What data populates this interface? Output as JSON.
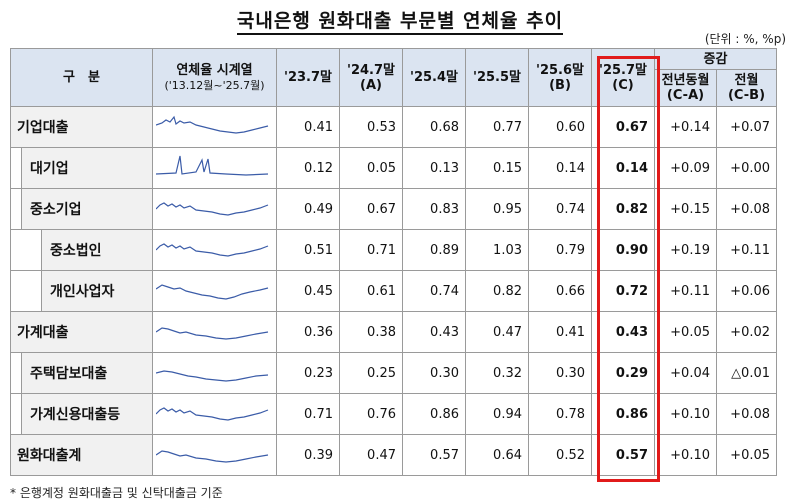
{
  "title": "국내은행 원화대출 부문별 연체율 추이",
  "unit": "(단위 : %, %p)",
  "headers": {
    "category": "구　분",
    "spark_title": "연체율 시계열",
    "spark_sub": "('13.12월~'25.7월)",
    "c1": "'23.7말",
    "c2": "'24.7말",
    "c2_sub": "(A)",
    "c3": "'25.4말",
    "c4": "'25.5말",
    "c5": "'25.6말",
    "c5_sub": "(B)",
    "c6": "'25.7말",
    "c6_sub": "(C)",
    "change": "증감",
    "yoy": "전년동월",
    "yoy_sub": "(C-A)",
    "mom": "전월",
    "mom_sub": "(C-B)"
  },
  "rows": [
    {
      "label": "기업대출",
      "level": 0,
      "v": [
        "0.41",
        "0.53",
        "0.68",
        "0.77",
        "0.60",
        "0.67"
      ],
      "yoy": "+0.14",
      "mom": "+0.07",
      "spark": "a"
    },
    {
      "label": "대기업",
      "level": 1,
      "v": [
        "0.12",
        "0.05",
        "0.13",
        "0.15",
        "0.14",
        "0.14"
      ],
      "yoy": "+0.09",
      "mom": "+0.00",
      "spark": "b"
    },
    {
      "label": "중소기업",
      "level": 1,
      "v": [
        "0.49",
        "0.67",
        "0.83",
        "0.95",
        "0.74",
        "0.82"
      ],
      "yoy": "+0.15",
      "mom": "+0.08",
      "spark": "c"
    },
    {
      "label": "중소법인",
      "level": 2,
      "v": [
        "0.51",
        "0.71",
        "0.89",
        "1.03",
        "0.79",
        "0.90"
      ],
      "yoy": "+0.19",
      "mom": "+0.11",
      "spark": "c"
    },
    {
      "label": "개인사업자",
      "level": 2,
      "v": [
        "0.45",
        "0.61",
        "0.74",
        "0.82",
        "0.66",
        "0.72"
      ],
      "yoy": "+0.11",
      "mom": "+0.06",
      "spark": "d"
    },
    {
      "label": "가계대출",
      "level": 0,
      "v": [
        "0.36",
        "0.38",
        "0.43",
        "0.47",
        "0.41",
        "0.43"
      ],
      "yoy": "+0.05",
      "mom": "+0.02",
      "spark": "e"
    },
    {
      "label": "주택담보대출",
      "level": 1,
      "v": [
        "0.23",
        "0.25",
        "0.30",
        "0.32",
        "0.30",
        "0.29"
      ],
      "yoy": "+0.04",
      "mom": "△0.01",
      "spark": "f"
    },
    {
      "label": "가계신용대출등",
      "level": 1,
      "v": [
        "0.71",
        "0.76",
        "0.86",
        "0.94",
        "0.78",
        "0.86"
      ],
      "yoy": "+0.10",
      "mom": "+0.08",
      "spark": "c"
    },
    {
      "label": "원화대출계",
      "level": 0,
      "v": [
        "0.39",
        "0.47",
        "0.57",
        "0.64",
        "0.52",
        "0.57"
      ],
      "yoy": "+0.10",
      "mom": "+0.05",
      "spark": "e"
    }
  ],
  "footnote": "* 은행계정 원화대출금 및 신탁대출금 기준",
  "colors": {
    "header_bg": "#dbe4f1",
    "highlight_border": "#e11b1b",
    "spark_line": "#3b5ca8"
  }
}
